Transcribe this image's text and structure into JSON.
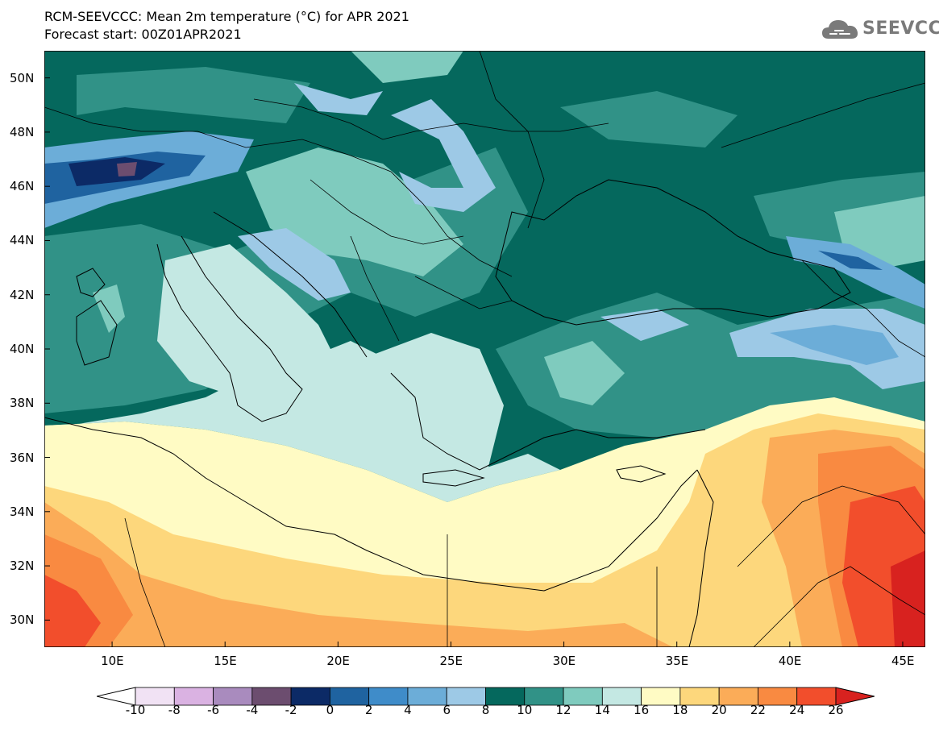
{
  "header": {
    "title": "RCM-SEEVCCC: Mean 2m temperature (°C) for APR 2021",
    "subtitle": "Forecast start: 00Z01APR2021"
  },
  "logo": {
    "text": "SEEVCCC",
    "icon": "cloud-icon"
  },
  "map": {
    "lat_range": [
      29,
      51
    ],
    "lon_range": [
      7,
      46
    ],
    "lat_ticks": [
      "50N",
      "48N",
      "46N",
      "44N",
      "42N",
      "40N",
      "38N",
      "36N",
      "34N",
      "32N",
      "30N"
    ],
    "lon_ticks": [
      "10E",
      "15E",
      "20E",
      "25E",
      "30E",
      "35E",
      "40E",
      "45E"
    ]
  },
  "colorbar": {
    "labels": [
      "-10",
      "-8",
      "-6",
      "-4",
      "-2",
      "0",
      "2",
      "4",
      "6",
      "8",
      "10",
      "12",
      "14",
      "16",
      "18",
      "20",
      "22",
      "24",
      "26"
    ],
    "colors": [
      "#ffffff",
      "#f1e2f4",
      "#dab2e2",
      "#a98bbe",
      "#6c4d6f",
      "#0c2a66",
      "#1f63a0",
      "#3f8cc9",
      "#6cadd8",
      "#9dc9e6",
      "#05685d",
      "#319287",
      "#7fcbbe",
      "#c4e8e3",
      "#fffbc4",
      "#fdd77c",
      "#fbac58",
      "#f98a41",
      "#f24e2c",
      "#d8221f"
    ]
  },
  "colors": {
    "cold_blue": "#3f8cc9",
    "dark_teal": "#05685d",
    "mid_teal": "#319287",
    "light_teal": "#7fcbbe",
    "pale_cyan": "#c4e8e3",
    "pale_yellow": "#fffbc4",
    "yellow": "#fdd77c",
    "orange": "#fbac58",
    "dark_orange": "#f98a41",
    "red": "#f24e2c"
  }
}
